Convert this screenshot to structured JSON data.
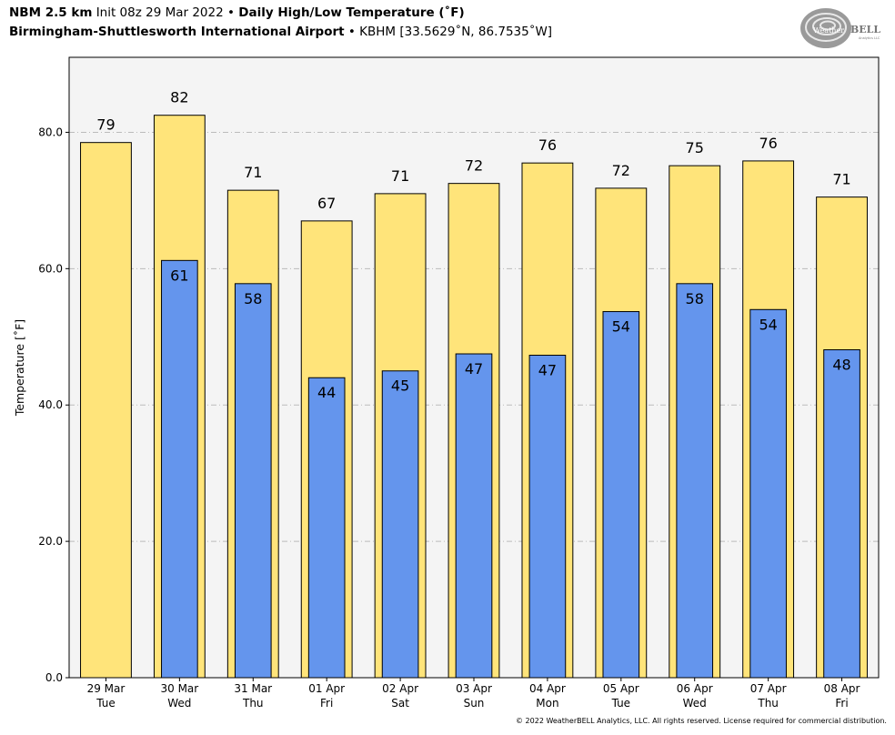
{
  "header": {
    "model": "NBM 2.5 km",
    "init": "Init 08z 29 Mar 2022",
    "sep": "•",
    "title": "Daily High/Low Temperature (˚F)",
    "station_name": "Birmingham-Shuttlesworth International Airport",
    "station_id": "KBHM [33.5629˚N, 86.7535˚W]"
  },
  "logo": {
    "text_a": "Weather",
    "text_b": "BELL",
    "sub": "Analytics LLC"
  },
  "footer": {
    "copyright": "© 2022 WeatherBELL Analytics, LLC. All rights reserved. License required for commercial distribution."
  },
  "colors": {
    "high": "#FFE47A",
    "low": "#6495ED",
    "plot_bg": "#F4F4F4",
    "grid": "#BBBBBB"
  },
  "chart_data": {
    "type": "bar",
    "title": "Daily High/Low Temperature (˚F)",
    "ylabel": "Temperature [˚F]",
    "xlabel": "",
    "ylim": [
      0,
      91
    ],
    "yticks": [
      0,
      20,
      40,
      60,
      80
    ],
    "ytick_labels": [
      "0.0",
      "20.0",
      "40.0",
      "60.0",
      "80.0"
    ],
    "grid": true,
    "categories": [
      "29 Mar",
      "30 Mar",
      "31 Mar",
      "01 Apr",
      "02 Apr",
      "03 Apr",
      "04 Apr",
      "05 Apr",
      "06 Apr",
      "07 Apr",
      "08 Apr"
    ],
    "weekdays": [
      "Tue",
      "Wed",
      "Thu",
      "Fri",
      "Sat",
      "Sun",
      "Mon",
      "Tue",
      "Wed",
      "Thu",
      "Fri"
    ],
    "series": [
      {
        "name": "High",
        "values": [
          78.5,
          82.5,
          71.5,
          67,
          71,
          72.5,
          75.5,
          71.8,
          75.1,
          75.8,
          70.5
        ],
        "labels": [
          "79",
          "82",
          "71",
          "67",
          "71",
          "72",
          "76",
          "72",
          "75",
          "76",
          "71"
        ]
      },
      {
        "name": "Low",
        "values": [
          null,
          61.2,
          57.8,
          44,
          45,
          47.5,
          47.3,
          53.7,
          57.8,
          54,
          48.1
        ],
        "labels": [
          null,
          "61",
          "58",
          "44",
          "45",
          "47",
          "47",
          "54",
          "58",
          "54",
          "48"
        ]
      }
    ]
  }
}
